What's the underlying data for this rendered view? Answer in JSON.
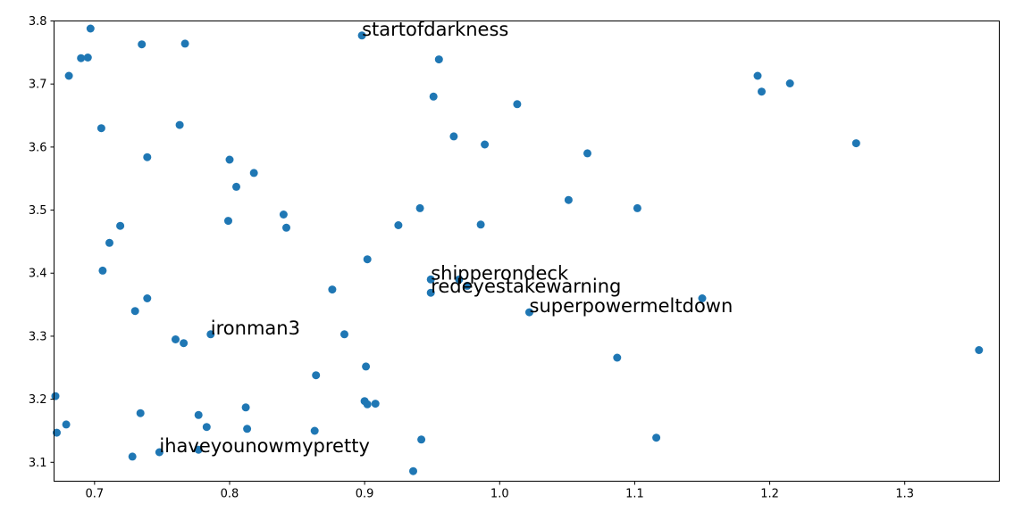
{
  "chart_data": {
    "type": "scatter",
    "title": "",
    "xlabel": "",
    "ylabel": "",
    "xlim": [
      0.67,
      1.37
    ],
    "ylim": [
      3.07,
      3.8
    ],
    "grid": false,
    "marker_color": "#1f77b4",
    "x_ticks": [
      "0.7",
      "0.8",
      "0.9",
      "1.0",
      "1.1",
      "1.2",
      "1.3"
    ],
    "y_ticks": [
      "3.1",
      "3.2",
      "3.3",
      "3.4",
      "3.5",
      "3.6",
      "3.7",
      "3.8"
    ],
    "points": [
      {
        "x": 0.697,
        "y": 3.788
      },
      {
        "x": 0.69,
        "y": 3.741
      },
      {
        "x": 0.695,
        "y": 3.742
      },
      {
        "x": 0.681,
        "y": 3.713
      },
      {
        "x": 0.705,
        "y": 3.63
      },
      {
        "x": 0.735,
        "y": 3.763
      },
      {
        "x": 0.767,
        "y": 3.764
      },
      {
        "x": 0.763,
        "y": 3.635
      },
      {
        "x": 0.739,
        "y": 3.584
      },
      {
        "x": 0.8,
        "y": 3.58
      },
      {
        "x": 0.818,
        "y": 3.559
      },
      {
        "x": 0.805,
        "y": 3.537
      },
      {
        "x": 0.719,
        "y": 3.475
      },
      {
        "x": 0.711,
        "y": 3.448
      },
      {
        "x": 0.706,
        "y": 3.404
      },
      {
        "x": 0.739,
        "y": 3.36
      },
      {
        "x": 0.73,
        "y": 3.34
      },
      {
        "x": 0.799,
        "y": 3.483
      },
      {
        "x": 0.84,
        "y": 3.493
      },
      {
        "x": 0.842,
        "y": 3.472
      },
      {
        "x": 0.786,
        "y": 3.303
      },
      {
        "x": 0.76,
        "y": 3.295
      },
      {
        "x": 0.766,
        "y": 3.289
      },
      {
        "x": 0.876,
        "y": 3.374
      },
      {
        "x": 0.885,
        "y": 3.303
      },
      {
        "x": 0.902,
        "y": 3.422
      },
      {
        "x": 0.898,
        "y": 3.777
      },
      {
        "x": 0.955,
        "y": 3.739
      },
      {
        "x": 0.951,
        "y": 3.68
      },
      {
        "x": 0.966,
        "y": 3.617
      },
      {
        "x": 0.989,
        "y": 3.604
      },
      {
        "x": 1.013,
        "y": 3.668
      },
      {
        "x": 1.065,
        "y": 3.59
      },
      {
        "x": 0.941,
        "y": 3.503
      },
      {
        "x": 0.925,
        "y": 3.476
      },
      {
        "x": 0.986,
        "y": 3.477
      },
      {
        "x": 1.051,
        "y": 3.516
      },
      {
        "x": 1.102,
        "y": 3.503
      },
      {
        "x": 0.949,
        "y": 3.39
      },
      {
        "x": 0.97,
        "y": 3.39
      },
      {
        "x": 0.976,
        "y": 3.38
      },
      {
        "x": 0.949,
        "y": 3.369
      },
      {
        "x": 1.022,
        "y": 3.338
      },
      {
        "x": 1.15,
        "y": 3.36
      },
      {
        "x": 1.191,
        "y": 3.713
      },
      {
        "x": 1.194,
        "y": 3.688
      },
      {
        "x": 1.215,
        "y": 3.701
      },
      {
        "x": 1.264,
        "y": 3.606
      },
      {
        "x": 1.087,
        "y": 3.266
      },
      {
        "x": 1.355,
        "y": 3.278
      },
      {
        "x": 1.116,
        "y": 3.139
      },
      {
        "x": 0.901,
        "y": 3.252
      },
      {
        "x": 0.864,
        "y": 3.238
      },
      {
        "x": 0.9,
        "y": 3.197
      },
      {
        "x": 0.902,
        "y": 3.192
      },
      {
        "x": 0.908,
        "y": 3.193
      },
      {
        "x": 0.863,
        "y": 3.15
      },
      {
        "x": 0.942,
        "y": 3.136
      },
      {
        "x": 0.936,
        "y": 3.086
      },
      {
        "x": 0.812,
        "y": 3.187
      },
      {
        "x": 0.777,
        "y": 3.175
      },
      {
        "x": 0.783,
        "y": 3.156
      },
      {
        "x": 0.813,
        "y": 3.153
      },
      {
        "x": 0.777,
        "y": 3.12
      },
      {
        "x": 0.748,
        "y": 3.116
      },
      {
        "x": 0.734,
        "y": 3.178
      },
      {
        "x": 0.728,
        "y": 3.109
      },
      {
        "x": 0.671,
        "y": 3.205
      },
      {
        "x": 0.679,
        "y": 3.16
      },
      {
        "x": 0.672,
        "y": 3.147
      }
    ],
    "annotations": [
      {
        "text": "startofdarkness",
        "x": 0.898,
        "y": 3.777
      },
      {
        "text": "shipperondeck",
        "x": 0.949,
        "y": 3.39
      },
      {
        "text": "redeyestakewarning",
        "x": 0.949,
        "y": 3.369
      },
      {
        "text": "superpowermeltdown",
        "x": 1.022,
        "y": 3.338
      },
      {
        "text": "ironman3",
        "x": 0.786,
        "y": 3.303
      },
      {
        "text": "ihaveyounowmypretty",
        "x": 0.748,
        "y": 3.116
      }
    ]
  }
}
